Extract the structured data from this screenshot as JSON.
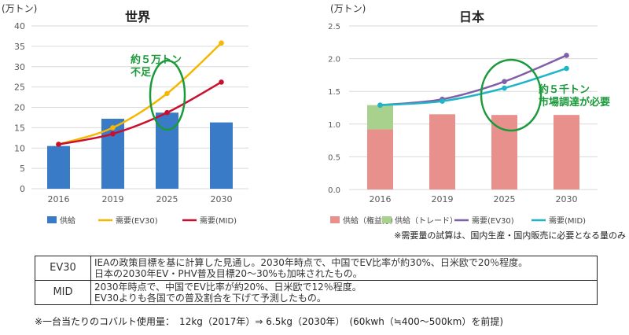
{
  "chart_data": [
    {
      "type": "bar",
      "title": "世界",
      "unit": "(万トン)",
      "categories": [
        "2016",
        "2019",
        "2025",
        "2030"
      ],
      "ylim": [
        0,
        40
      ],
      "yticks": [
        "0",
        "5",
        "10",
        "15",
        "20",
        "25",
        "30",
        "35",
        "40"
      ],
      "grid": true,
      "legend_placement": "bottom",
      "bars": [
        {
          "name": "供給",
          "color": "#3a7bc8",
          "values": [
            10.5,
            17.2,
            18.7,
            16.3
          ]
        }
      ],
      "series": [
        {
          "name": "需要(EV30)",
          "color": "#f5b800",
          "values": [
            10.9,
            15.0,
            23.4,
            35.8
          ]
        },
        {
          "name": "需要(MID)",
          "color": "#c8102e",
          "values": [
            10.9,
            13.5,
            18.7,
            26.2
          ]
        }
      ],
      "annotation": [
        "約５万トン",
        "不足"
      ]
    },
    {
      "type": "bar",
      "title": "日本",
      "unit": "(万トン)",
      "categories": [
        "2016",
        "2019",
        "2025",
        "2030"
      ],
      "ylim": [
        0,
        2.5
      ],
      "yticks": [
        "0.0",
        "0.5",
        "1.0",
        "1.5",
        "2.0",
        "2.5"
      ],
      "grid": true,
      "legend_placement": "bottom",
      "bars": [
        {
          "name": "供給（権益分）",
          "color": "#e8918c",
          "values": [
            0.92,
            1.15,
            1.14,
            1.14
          ]
        },
        {
          "name": "供給（トレード）",
          "color": "#a9d18e",
          "values": [
            0.37,
            0,
            0,
            0
          ]
        }
      ],
      "series": [
        {
          "name": "需要(EV30)",
          "color": "#7f5fa8",
          "values": [
            1.29,
            1.38,
            1.65,
            2.05
          ]
        },
        {
          "name": "需要(MID)",
          "color": "#1fb5c8",
          "values": [
            1.29,
            1.35,
            1.55,
            1.85
          ]
        }
      ],
      "annotation": [
        "約５千トン",
        "市場調達が必要"
      ],
      "note": "※需要量の試算は、国内生産・国内販売に必要となる量のみ"
    }
  ],
  "table": [
    {
      "key": "EV30",
      "lines": [
        "IEAの政策目標を基に計算した見通し。2030年時点で、中国でEV比率が約30%、日米欧で20％程度。",
        "日本の2030年EV・PHV普及目標20〜30%も加味されたもの。"
      ]
    },
    {
      "key": "MID",
      "lines": [
        "2030年時点で、中国でEV比率が約20%、日米欧で12％程度。",
        "EV30よりも各国での普及割合を下げて予測したもの。"
      ]
    }
  ],
  "footnote": "※一台当たりのコバルト使用量：　12kg（2017年）⇒ 6.5kg（2030年）　(60kwh（≒400〜500km）を前提)",
  "colors": {
    "annotation": "#1a9a3a",
    "grid": "#d9d9d9",
    "axis_text": "#595959"
  }
}
